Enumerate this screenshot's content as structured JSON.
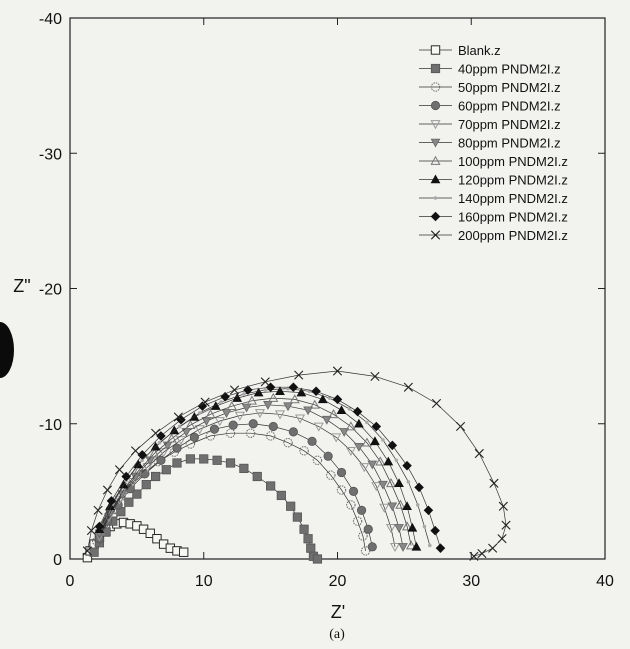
{
  "chart_data": {
    "type": "scatter",
    "title": "",
    "xlabel": "Z'",
    "ylabel": "Z\"",
    "caption": "(a)",
    "xlim": [
      0,
      40
    ],
    "ylim": [
      0,
      -40
    ],
    "xticks": [
      0,
      10,
      20,
      30,
      40
    ],
    "yticks": [
      0,
      -10,
      -20,
      -30,
      -40
    ],
    "legend_position": "top-right",
    "series": [
      {
        "name": "Blank.z",
        "marker": "square-open",
        "x": [
          1.3,
          1.5,
          1.8,
          2.2,
          2.6,
          3.0,
          3.5,
          4.0,
          4.5,
          5.0,
          5.5,
          6.0,
          6.5,
          7.0,
          7.5,
          8.0,
          8.5
        ],
        "y": [
          -0.1,
          -0.6,
          -1.1,
          -1.6,
          -2.0,
          -2.4,
          -2.6,
          -2.7,
          -2.6,
          -2.45,
          -2.2,
          -1.9,
          -1.5,
          -1.1,
          -0.8,
          -0.6,
          -0.5
        ]
      },
      {
        "name": "40ppm PNDM2I.z",
        "marker": "square-filled",
        "x": [
          1.8,
          2.2,
          2.7,
          3.2,
          3.8,
          4.4,
          5.0,
          5.7,
          6.4,
          7.2,
          8.0,
          9.0,
          10.0,
          11.0,
          12.0,
          13.0,
          14.0,
          15.0,
          15.8,
          16.5,
          17.0,
          17.5,
          17.8,
          18.0,
          18.2,
          18.5
        ],
        "y": [
          -0.5,
          -1.2,
          -2.0,
          -2.8,
          -3.5,
          -4.2,
          -4.8,
          -5.5,
          -6.1,
          -6.6,
          -7.1,
          -7.4,
          -7.4,
          -7.3,
          -7.1,
          -6.7,
          -6.1,
          -5.4,
          -4.7,
          -3.9,
          -3.1,
          -2.2,
          -1.5,
          -0.8,
          -0.2,
          0.0
        ]
      },
      {
        "name": "50ppm PNDM2I.z",
        "marker": "circle-open",
        "x": [
          2.0,
          2.5,
          3.0,
          3.8,
          4.5,
          5.5,
          6.6,
          7.8,
          9.0,
          10.5,
          12.0,
          13.5,
          15.0,
          16.3,
          17.5,
          18.5,
          19.5,
          20.3,
          21.0,
          21.5,
          21.9,
          22.1
        ],
        "y": [
          -1.3,
          -2.5,
          -3.6,
          -4.6,
          -5.4,
          -6.3,
          -7.2,
          -7.9,
          -8.5,
          -9.1,
          -9.3,
          -9.3,
          -9.1,
          -8.6,
          -8.0,
          -7.3,
          -6.2,
          -5.1,
          -4.0,
          -2.8,
          -1.7,
          -0.6
        ]
      },
      {
        "name": "60ppm PNDM2I.z",
        "marker": "circle-filled",
        "x": [
          2.2,
          2.8,
          3.6,
          4.5,
          5.6,
          6.8,
          8.0,
          9.3,
          10.8,
          12.2,
          13.7,
          15.2,
          16.7,
          18.1,
          19.3,
          20.3,
          21.2,
          21.8,
          22.3,
          22.6
        ],
        "y": [
          -1.5,
          -2.8,
          -4.0,
          -5.2,
          -6.3,
          -7.3,
          -8.2,
          -9.0,
          -9.6,
          -9.9,
          -10.0,
          -9.8,
          -9.4,
          -8.7,
          -7.6,
          -6.4,
          -5.0,
          -3.6,
          -2.2,
          -0.9
        ]
      },
      {
        "name": "70ppm PNDM2I.z",
        "marker": "triangle-down-open",
        "x": [
          2.2,
          2.9,
          3.7,
          4.7,
          5.8,
          7.0,
          8.3,
          9.7,
          11.2,
          12.7,
          14.2,
          15.7,
          17.2,
          18.6,
          19.9,
          21.0,
          22.0,
          22.9,
          23.5,
          24.0,
          24.3
        ],
        "y": [
          -1.7,
          -3.1,
          -4.4,
          -5.7,
          -6.8,
          -7.9,
          -8.8,
          -9.6,
          -10.2,
          -10.6,
          -10.8,
          -10.7,
          -10.4,
          -9.8,
          -9.0,
          -8.0,
          -6.8,
          -5.4,
          -3.8,
          -2.3,
          -0.9
        ]
      },
      {
        "name": "80ppm PNDM2I.z",
        "marker": "triangle-down-filled",
        "x": [
          2.2,
          3.0,
          3.9,
          4.9,
          6.0,
          7.3,
          8.7,
          10.2,
          11.7,
          13.2,
          14.8,
          16.3,
          17.8,
          19.2,
          20.5,
          21.6,
          22.6,
          23.4,
          24.1,
          24.6,
          24.9
        ],
        "y": [
          -1.9,
          -3.4,
          -4.8,
          -6.1,
          -7.3,
          -8.4,
          -9.4,
          -10.2,
          -10.8,
          -11.2,
          -11.4,
          -11.3,
          -11.0,
          -10.3,
          -9.4,
          -8.3,
          -7.0,
          -5.5,
          -3.9,
          -2.3,
          -0.9
        ]
      },
      {
        "name": "100ppm PNDM2I.z",
        "marker": "triangle-up-open",
        "x": [
          2.3,
          3.1,
          4.0,
          5.1,
          6.3,
          7.6,
          9.0,
          10.5,
          12.1,
          13.6,
          15.2,
          16.8,
          18.3,
          19.7,
          21.0,
          22.2,
          23.2,
          24.0,
          24.7,
          25.2,
          25.5
        ],
        "y": [
          -2.0,
          -3.6,
          -5.1,
          -6.5,
          -7.8,
          -8.9,
          -9.9,
          -10.7,
          -11.3,
          -11.7,
          -11.9,
          -11.8,
          -11.4,
          -10.7,
          -9.8,
          -8.6,
          -7.2,
          -5.6,
          -4.0,
          -2.4,
          -1.0
        ]
      },
      {
        "name": "120ppm PNDM2I.z",
        "marker": "triangle-up-filled",
        "x": [
          2.2,
          3.0,
          4.0,
          5.1,
          6.4,
          7.8,
          9.3,
          10.9,
          12.5,
          14.1,
          15.7,
          17.3,
          18.9,
          20.3,
          21.6,
          22.8,
          23.8,
          24.6,
          25.2,
          25.6,
          25.9
        ],
        "y": [
          -2.2,
          -3.9,
          -5.5,
          -7.0,
          -8.3,
          -9.5,
          -10.5,
          -11.3,
          -11.9,
          -12.3,
          -12.4,
          -12.3,
          -11.8,
          -11.0,
          -10.0,
          -8.7,
          -7.2,
          -5.6,
          -3.9,
          -2.3,
          -0.9
        ]
      },
      {
        "name": "140ppm PNDM2I.z",
        "marker": "small-dot",
        "x": [
          2.3,
          3.2,
          4.2,
          5.4,
          6.7,
          8.2,
          9.7,
          11.3,
          13.0,
          14.6,
          16.3,
          17.9,
          19.4,
          20.9,
          22.2,
          23.4,
          24.4,
          25.3,
          26.0,
          26.5,
          26.9
        ],
        "y": [
          -2.3,
          -4.1,
          -5.8,
          -7.3,
          -8.6,
          -9.8,
          -10.8,
          -11.6,
          -12.2,
          -12.5,
          -12.6,
          -12.4,
          -11.9,
          -11.1,
          -10.1,
          -8.8,
          -7.3,
          -5.7,
          -4.0,
          -2.4,
          -1.0
        ]
      },
      {
        "name": "160ppm PNDM2I.z",
        "marker": "diamond-filled",
        "x": [
          2.2,
          3.1,
          4.2,
          5.4,
          6.8,
          8.3,
          9.9,
          11.6,
          13.3,
          15.0,
          16.7,
          18.4,
          20.0,
          21.5,
          22.9,
          24.1,
          25.2,
          26.1,
          26.8,
          27.3,
          27.7
        ],
        "y": [
          -2.4,
          -4.3,
          -6.1,
          -7.7,
          -9.1,
          -10.3,
          -11.3,
          -12.0,
          -12.5,
          -12.7,
          -12.7,
          -12.4,
          -11.8,
          -10.9,
          -9.8,
          -8.4,
          -6.9,
          -5.3,
          -3.6,
          -2.1,
          -0.8
        ]
      },
      {
        "name": "200ppm PNDM2I.z",
        "marker": "cross",
        "x": [
          1.3,
          1.6,
          2.1,
          2.8,
          3.7,
          4.9,
          6.4,
          8.1,
          10.1,
          12.3,
          14.6,
          17.1,
          20.0,
          22.8,
          25.3,
          27.4,
          29.2,
          30.6,
          31.7,
          32.4,
          32.6,
          32.3,
          31.6,
          30.8,
          30.2
        ],
        "y": [
          -0.6,
          -2.1,
          -3.6,
          -5.1,
          -6.6,
          -8.0,
          -9.3,
          -10.5,
          -11.6,
          -12.5,
          -13.1,
          -13.6,
          -13.9,
          -13.5,
          -12.7,
          -11.5,
          -9.8,
          -7.8,
          -5.6,
          -3.9,
          -2.5,
          -1.5,
          -0.8,
          -0.4,
          -0.2
        ]
      }
    ]
  }
}
